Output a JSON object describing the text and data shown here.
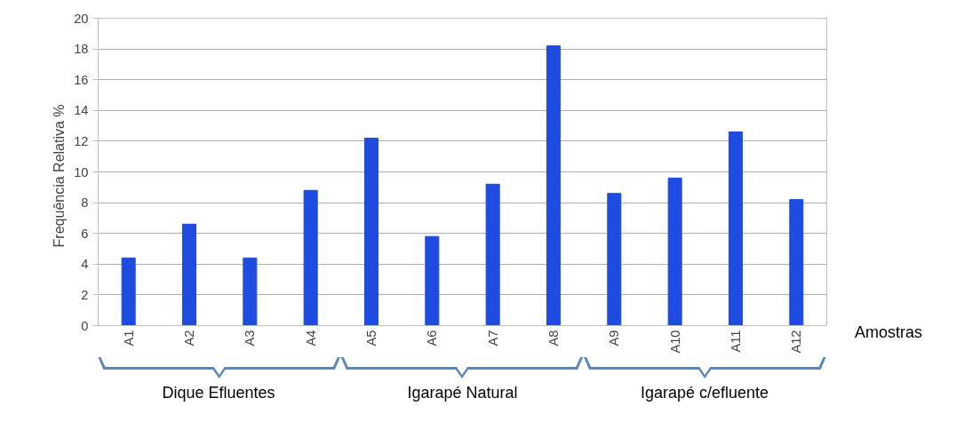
{
  "chart_data": {
    "type": "bar",
    "xlabel": "Amostras",
    "ylabel": "Frequência Relativa   %",
    "categories": [
      "A1",
      "A2",
      "A3",
      "A4",
      "A5",
      "A6",
      "A7",
      "A8",
      "A9",
      "A10",
      "A11",
      "A12"
    ],
    "values": [
      4.4,
      6.6,
      4.4,
      8.8,
      12.2,
      5.8,
      9.2,
      18.2,
      8.6,
      9.6,
      12.6,
      8.2
    ],
    "color": "#1f4ce0",
    "ylim": [
      0,
      20
    ],
    "yticks": [
      0,
      2,
      4,
      6,
      8,
      10,
      12,
      14,
      16,
      18,
      20
    ],
    "grid": "y",
    "annotations": [
      "Dique Efluentes",
      "Igarapé Natural",
      "Igarapé c/efluente"
    ]
  }
}
